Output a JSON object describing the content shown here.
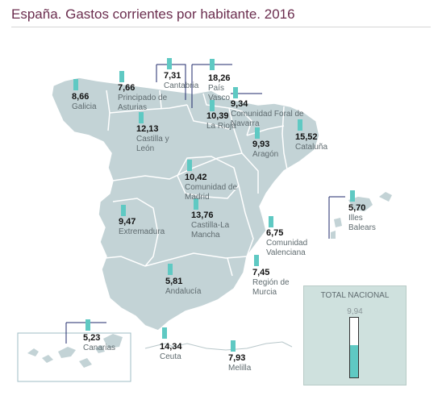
{
  "title": "España. Gastos corrientes por habitante. 2016",
  "colors": {
    "title": "#6b2d4e",
    "land": "#c3d3d6",
    "region_border": "#ffffff",
    "bar": "#5fc9c3",
    "leader_line": "#1f2a6b",
    "total_box_bg": "#cfe1de"
  },
  "regions": [
    {
      "name": "Galicia",
      "value": "8,66"
    },
    {
      "name": "Principado de Asturias",
      "value": "7,66"
    },
    {
      "name": "Cantabria",
      "value": "7,31"
    },
    {
      "name": "País Vasco",
      "value": "18,26"
    },
    {
      "name": "Comunidad Foral de Navarra",
      "value": "9,34"
    },
    {
      "name": "La Rioja",
      "value": "10,39"
    },
    {
      "name": "Castilla y León",
      "value": "12,13"
    },
    {
      "name": "Aragón",
      "value": "9,93"
    },
    {
      "name": "Cataluña",
      "value": "15,52"
    },
    {
      "name": "Comunidad de Madrid",
      "value": "10,42"
    },
    {
      "name": "Extremadura",
      "value": "9,47"
    },
    {
      "name": "Castilla-La Mancha",
      "value": "13,76"
    },
    {
      "name": "Illes Balears",
      "value": "5,70"
    },
    {
      "name": "Comunidad Valenciana",
      "value": "6,75"
    },
    {
      "name": "Región de Murcia",
      "value": "7,45"
    },
    {
      "name": "Andalucía",
      "value": "5,81"
    },
    {
      "name": "Canarias",
      "value": "5,23"
    },
    {
      "name": "Ceuta",
      "value": "14,34"
    },
    {
      "name": "Melilla",
      "value": "7,93"
    }
  ],
  "total": {
    "label": "TOTAL NACIONAL",
    "value": "9,94",
    "value_num": 9.94,
    "scale_max": 18.26
  }
}
